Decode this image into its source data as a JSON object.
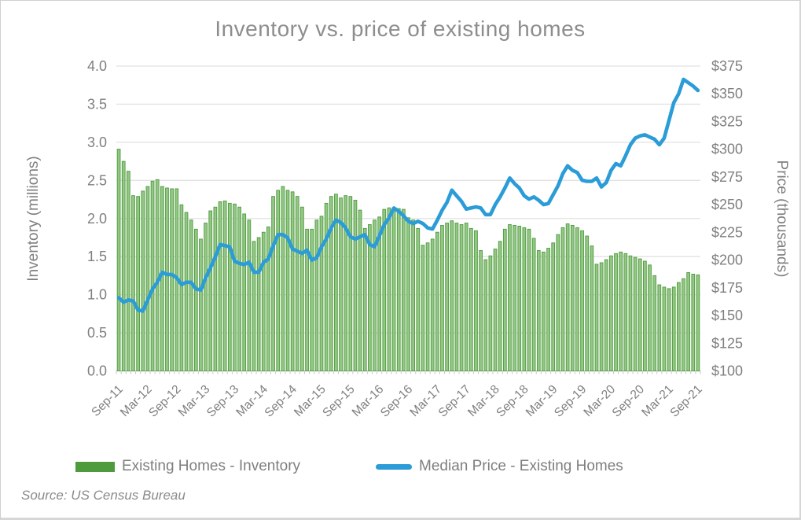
{
  "source_note": "Source: US Census Bureau",
  "colors": {
    "title_text": "#8d8d8d",
    "axis_text": "#7f7f7f",
    "gridline": "#e2e2e2",
    "axis_line": "#c6c6c6",
    "bar_fill": "#94c785",
    "bar_stroke": "#4e9b3e",
    "line_stroke": "#2b9cd8",
    "legend_text": "#7f7f7f"
  },
  "chart_data": {
    "type": "bar+line combo",
    "title": "Inventory vs. price of existing homes",
    "grid": "horizontal only",
    "legend_position": "bottom",
    "x_months_span": "Sep-2011 to Sep-2021, one bar/point per month (121 points)",
    "x_tick_labels": [
      "Sep-11",
      "Mar-12",
      "Sep-12",
      "Mar-13",
      "Sep-13",
      "Mar-14",
      "Sep-14",
      "Mar-15",
      "Sep-15",
      "Mar-16",
      "Sep-16",
      "Mar-17",
      "Sep-17",
      "Mar-18",
      "Sep-18",
      "Mar-19",
      "Sep-19",
      "Mar-20",
      "Sep-20",
      "Mar-21",
      "Sep-21"
    ],
    "left_axis": {
      "label": "Inventory (millions)",
      "min": 0.0,
      "max": 4.0,
      "step": 0.5,
      "tick_labels": [
        "4.0",
        "3.5",
        "3.0",
        "2.5",
        "2.0",
        "1.5",
        "1.0",
        "0.5",
        "0.0"
      ]
    },
    "right_axis": {
      "label": "Price (thousands)",
      "min": 100,
      "max": 375,
      "step": 25,
      "tick_labels": [
        "$375",
        "$350",
        "$325",
        "$300",
        "$275",
        "$250",
        "$225",
        "$200",
        "$175",
        "$150",
        "$125",
        "$100"
      ]
    },
    "series": [
      {
        "name": "Existing Homes - Inventory",
        "type": "bar",
        "axis": "left",
        "values": [
          2.91,
          2.75,
          2.62,
          2.3,
          2.29,
          2.36,
          2.42,
          2.49,
          2.51,
          2.42,
          2.4,
          2.39,
          2.39,
          2.18,
          2.08,
          1.98,
          1.86,
          1.73,
          1.94,
          2.1,
          2.15,
          2.22,
          2.23,
          2.2,
          2.19,
          2.15,
          2.06,
          1.98,
          1.7,
          1.75,
          1.82,
          1.89,
          2.29,
          2.37,
          2.42,
          2.37,
          2.35,
          2.29,
          2.15,
          1.86,
          1.86,
          1.98,
          2.03,
          2.2,
          2.29,
          2.32,
          2.27,
          2.3,
          2.29,
          2.24,
          2.11,
          1.87,
          1.92,
          1.98,
          2.02,
          2.12,
          2.14,
          2.12,
          2.13,
          2.12,
          2.01,
          1.98,
          1.87,
          1.65,
          1.68,
          1.73,
          1.82,
          1.91,
          1.94,
          1.97,
          1.94,
          1.92,
          1.94,
          1.87,
          1.84,
          1.58,
          1.46,
          1.51,
          1.6,
          1.7,
          1.86,
          1.92,
          1.91,
          1.9,
          1.88,
          1.86,
          1.74,
          1.58,
          1.56,
          1.61,
          1.68,
          1.79,
          1.88,
          1.93,
          1.91,
          1.88,
          1.84,
          1.77,
          1.64,
          1.4,
          1.42,
          1.46,
          1.51,
          1.54,
          1.56,
          1.54,
          1.51,
          1.49,
          1.47,
          1.44,
          1.39,
          1.25,
          1.13,
          1.1,
          1.08,
          1.1,
          1.16,
          1.21,
          1.29,
          1.27,
          1.26
        ]
      },
      {
        "name": "Median Price - Existing Homes",
        "type": "line",
        "axis": "right",
        "values": [
          166,
          162,
          164,
          163,
          155,
          154,
          164,
          174,
          180,
          189,
          187,
          187,
          184,
          178,
          180,
          180,
          174,
          173,
          184,
          193,
          203,
          214,
          213,
          212,
          199,
          197,
          196,
          198,
          189,
          189,
          198,
          201,
          213,
          223,
          223,
          220,
          210,
          208,
          206,
          209,
          200,
          202,
          212,
          219,
          229,
          236,
          234,
          229,
          221,
          219,
          221,
          223,
          214,
          212,
          222,
          232,
          238,
          247,
          244,
          240,
          235,
          233,
          235,
          233,
          229,
          228,
          236,
          245,
          252,
          263,
          258,
          253,
          246,
          247,
          248,
          247,
          241,
          241,
          250,
          257,
          265,
          274,
          269,
          265,
          258,
          255,
          257,
          254,
          250,
          251,
          259,
          267,
          278,
          285,
          281,
          279,
          272,
          271,
          271,
          274,
          266,
          270,
          281,
          287,
          285,
          294,
          304,
          310,
          312,
          313,
          311,
          309,
          304,
          310,
          326,
          342,
          350,
          363,
          360,
          357,
          353
        ]
      }
    ]
  }
}
